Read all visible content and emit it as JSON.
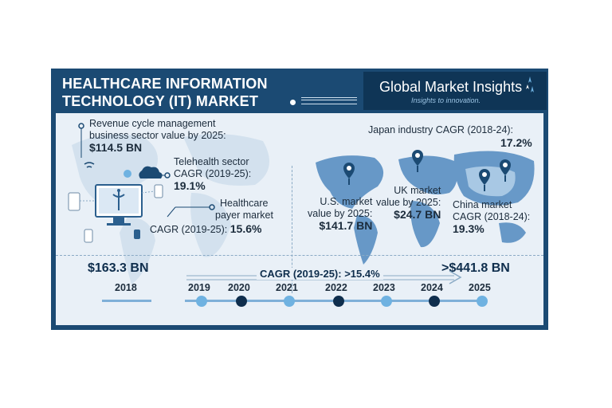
{
  "header": {
    "title_line1": "HEALTHCARE INFORMATION",
    "title_line2": "TECHNOLOGY (IT) MARKET"
  },
  "logo": {
    "name": "Global Market Insights",
    "tagline": "Insights to innovation."
  },
  "stats": {
    "revenue_cycle": {
      "line1": "Revenue cycle management",
      "line2": "business sector value by 2025:",
      "value": "$114.5 BN"
    },
    "telehealth": {
      "line1": "Telehealth sector",
      "line2": "CAGR (2019-25):",
      "value": "19.1%"
    },
    "payer": {
      "line1": "Healthcare",
      "line2": "payer market",
      "line3": "CAGR (2019-25):",
      "value": "15.6%"
    },
    "japan": {
      "line1": "Japan industry CAGR (2018-24):",
      "value": "17.2%"
    },
    "us": {
      "line1": "U.S. market",
      "line2": "value by 2025:",
      "value": "$141.7 BN"
    },
    "uk": {
      "line1": "UK market",
      "line2": "value by 2025:",
      "value": "$24.7 BN"
    },
    "china": {
      "line1": "China market",
      "line2": "CAGR (2018-24):",
      "value": "19.3%"
    }
  },
  "timeline": {
    "start_value": "$163.3 BN",
    "end_value": ">$441.8 BN",
    "cagr": "CAGR (2019-25): >15.4%",
    "years": [
      "2018",
      "2019",
      "2020",
      "2021",
      "2022",
      "2023",
      "2024",
      "2025"
    ]
  },
  "colors": {
    "frame": "#1b4a73",
    "panel": "#e9f0f7",
    "accent_light": "#6fb2e1",
    "accent_dark": "#0f2e4d"
  }
}
